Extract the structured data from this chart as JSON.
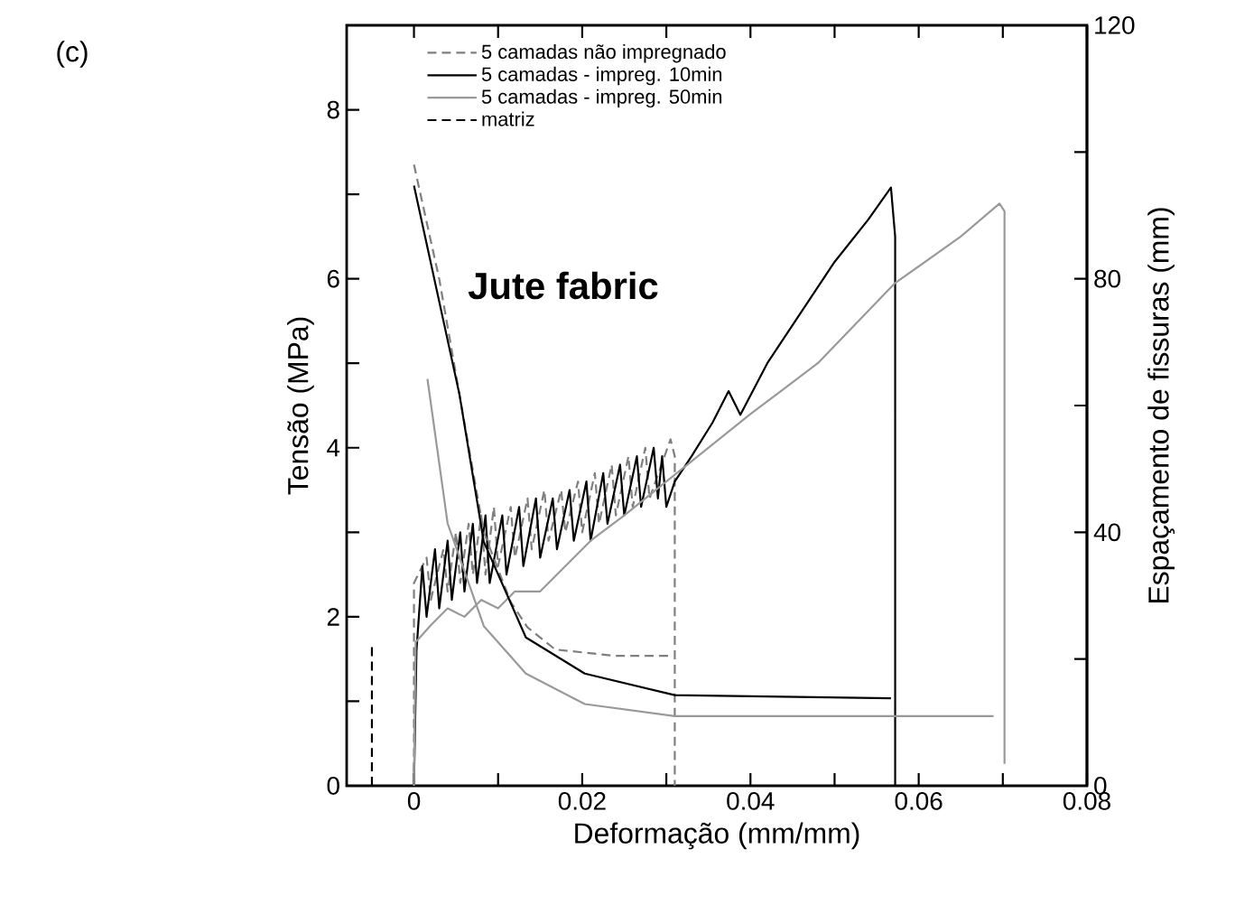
{
  "chart_data": {
    "type": "line",
    "xlabel": "Deformação (mm/mm)",
    "ylabel": "Tensão (MPa)",
    "y2label": "Espaçamento de fissuras (mm)",
    "annotations": [
      "(c)",
      "Jute fabric"
    ],
    "xlim": [
      -0.008,
      0.08
    ],
    "ylim": [
      0,
      9
    ],
    "y2lim": [
      0,
      120
    ],
    "xticks": [
      0,
      {
        "value": 0.01,
        "label": null
      },
      0.02,
      {
        "value": 0.03,
        "label": null
      },
      0.04,
      {
        "value": 0.05,
        "label": null
      },
      0.06,
      {
        "value": 0.07,
        "label": null
      },
      0.08
    ],
    "yticks": [
      0,
      {
        "value": 1,
        "label": null
      },
      2,
      {
        "value": 3,
        "label": null
      },
      4,
      {
        "value": 5,
        "label": null
      },
      6,
      {
        "value": 7,
        "label": null
      },
      8
    ],
    "y2ticks": [
      0,
      {
        "value": 20,
        "label": null
      },
      40,
      {
        "value": 60,
        "label": null
      },
      80,
      {
        "value": 100,
        "label": null
      },
      120
    ],
    "legend": "top left",
    "series": [
      {
        "name": "5 camadas não impregnado",
        "color": "#7f7f7f",
        "line_style": "dashed",
        "x": [
          0,
          0,
          0.0015,
          0.002,
          0.0035,
          0.004,
          0.005,
          0.0055,
          0.0065,
          0.007,
          0.008,
          0.0085,
          0.0095,
          0.01,
          0.0115,
          0.012,
          0.0135,
          0.014,
          0.0155,
          0.016,
          0.0175,
          0.018,
          0.0195,
          0.02,
          0.0215,
          0.022,
          0.0235,
          0.024,
          0.0255,
          0.026,
          0.0275,
          0.028,
          0.0305,
          0.031,
          0.031
        ],
        "values": [
          0,
          2.4,
          2.7,
          2.2,
          2.8,
          2.3,
          3.0,
          2.4,
          3.1,
          2.5,
          3.2,
          2.5,
          3.3,
          2.6,
          3.3,
          2.7,
          3.4,
          2.8,
          3.5,
          2.9,
          3.5,
          3.0,
          3.6,
          3.0,
          3.7,
          3.1,
          3.8,
          3.2,
          3.9,
          3.3,
          4.0,
          3.4,
          4.1,
          3.9,
          0
        ]
      },
      {
        "name": "5 camadas - impreg. 10min",
        "color": "#000000",
        "line_style": "solid",
        "x": [
          0,
          0.0003,
          0.001,
          0.0015,
          0.0025,
          0.003,
          0.004,
          0.0045,
          0.0055,
          0.006,
          0.007,
          0.0075,
          0.0085,
          0.009,
          0.0105,
          0.011,
          0.0125,
          0.013,
          0.0145,
          0.015,
          0.0165,
          0.017,
          0.0185,
          0.019,
          0.0205,
          0.021,
          0.0225,
          0.023,
          0.0245,
          0.025,
          0.0265,
          0.027,
          0.0285,
          0.029,
          0.0295,
          0.03,
          0.031,
          0.033,
          0.0355,
          0.0374,
          0.0388,
          0.042,
          0.046,
          0.05,
          0.054,
          0.0567,
          0.0572,
          0.0572
        ],
        "values": [
          0,
          1.6,
          2.6,
          2.0,
          2.8,
          2.1,
          2.9,
          2.2,
          3.0,
          2.3,
          3.1,
          2.4,
          3.2,
          2.4,
          3.2,
          2.5,
          3.3,
          2.6,
          3.4,
          2.7,
          3.4,
          2.8,
          3.5,
          2.9,
          3.6,
          2.9,
          3.7,
          3.1,
          3.8,
          3.2,
          3.9,
          3.3,
          4.0,
          3.4,
          3.9,
          3.3,
          3.6,
          3.9,
          4.3,
          4.67,
          4.39,
          5.0,
          5.6,
          6.2,
          6.7,
          7.08,
          6.5,
          0
        ]
      },
      {
        "name": "5 camadas - impreg. 50min",
        "color": "#999999",
        "line_style": "solid",
        "x": [
          0,
          0.0002,
          0.002,
          0.004,
          0.006,
          0.008,
          0.01,
          0.012,
          0.015,
          0.018,
          0.021,
          0.025,
          0.03,
          0.035,
          0.04,
          0.044,
          0.048,
          0.0572,
          0.065,
          0.0696,
          0.0702,
          0.0702
        ],
        "values": [
          0,
          1.7,
          1.9,
          2.1,
          2.0,
          2.2,
          2.1,
          2.3,
          2.3,
          2.6,
          2.9,
          3.2,
          3.6,
          4.0,
          4.4,
          4.7,
          5.0,
          5.95,
          6.5,
          6.89,
          6.8,
          0.26
        ]
      },
      {
        "name": "matriz",
        "color": "#000000",
        "line_style": "dashed",
        "x": [
          -0.005,
          -0.005
        ],
        "values": [
          0,
          1.65
        ]
      },
      {
        "color": "#7f7f7f",
        "line_style": "dashed",
        "axis": "y2",
        "x": [
          0,
          0.003,
          0.0054,
          0.0083,
          0.0115,
          0.0135,
          0.0168,
          0.0239,
          0.0306
        ],
        "values": [
          98,
          80,
          61.8,
          40,
          29,
          25,
          21.5,
          20.5,
          20.5
        ]
      },
      {
        "color": "#000000",
        "line_style": "solid",
        "axis": "y2",
        "x": [
          0,
          0.0054,
          0.0083,
          0.0133,
          0.0203,
          0.031,
          0.0567
        ],
        "values": [
          94.7,
          61.8,
          38.5,
          23.4,
          17.7,
          14.3,
          13.8
        ]
      },
      {
        "color": "#999999",
        "line_style": "solid",
        "axis": "y2",
        "x": [
          0.0016,
          0.004,
          0.0083,
          0.0133,
          0.0203,
          0.031,
          0.0689
        ],
        "values": [
          64.2,
          41.4,
          25.2,
          17.7,
          12.9,
          11.0,
          11.0
        ]
      }
    ]
  }
}
